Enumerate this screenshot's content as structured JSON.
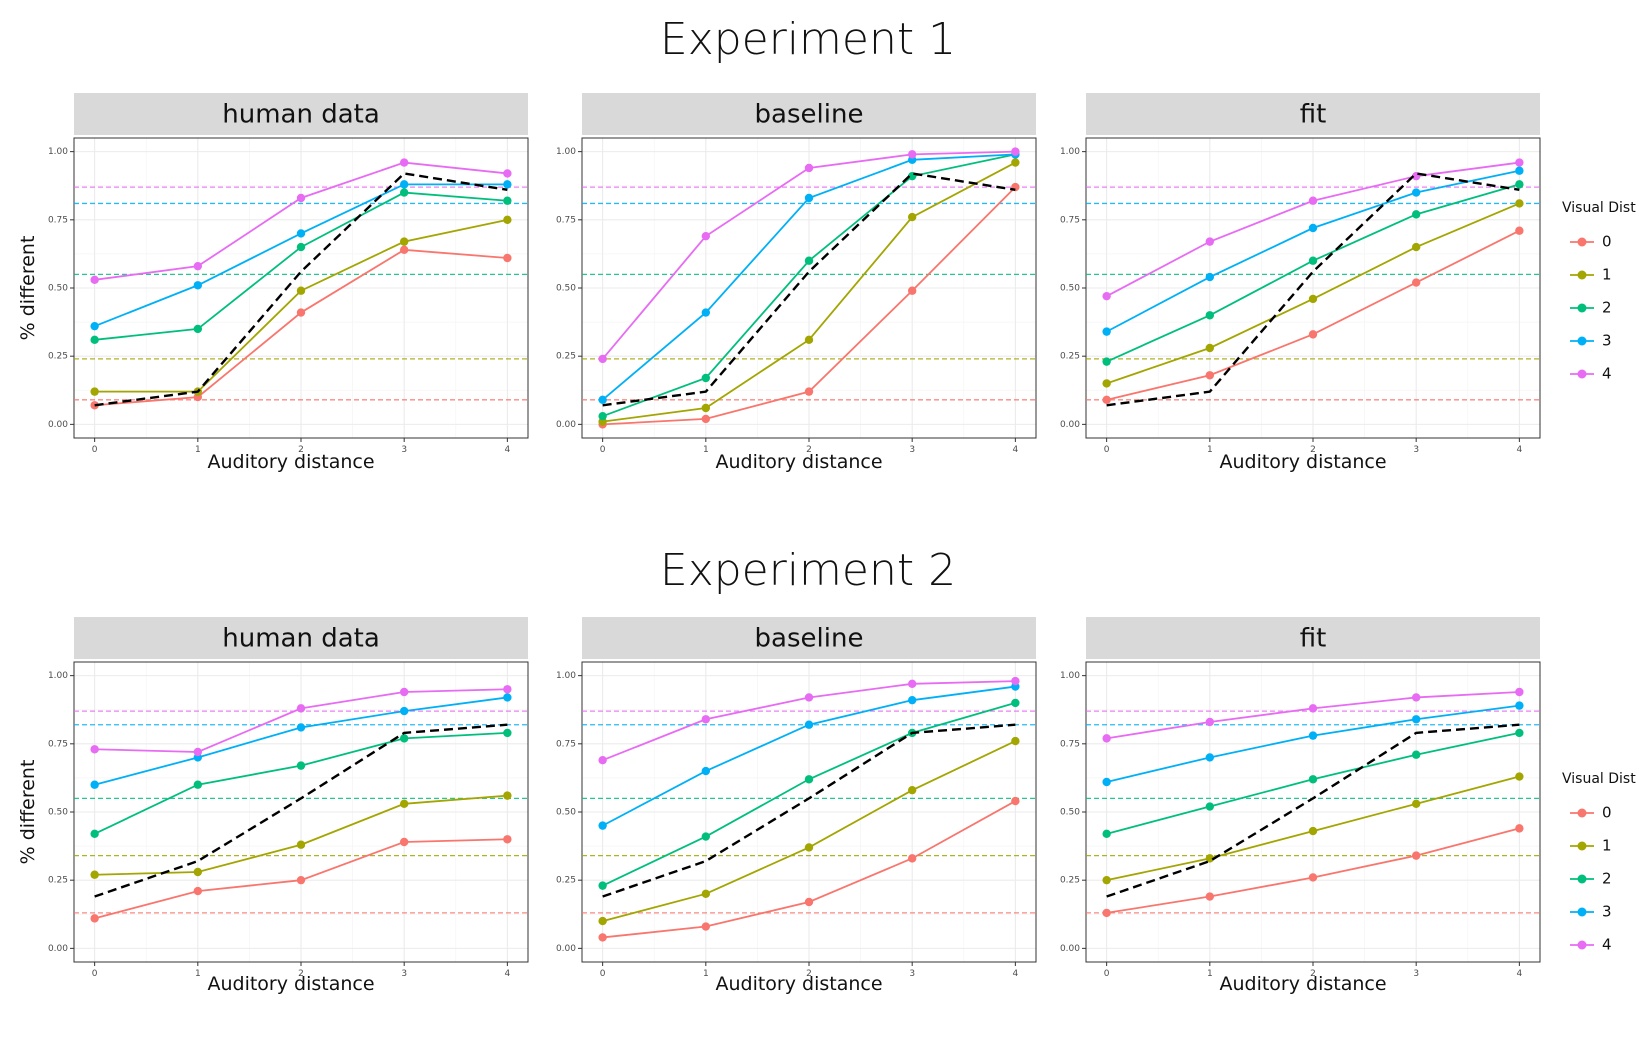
{
  "colors": {
    "visual_dist": [
      "#F8766D",
      "#A3A500",
      "#00BF7D",
      "#00B0F6",
      "#E76BF3"
    ],
    "mean_line": "#000000",
    "strip": "#d9d9d9"
  },
  "chart_data": [
    {
      "type": "line",
      "title": "Experiment 1",
      "panels": [
        {
          "name": "human data",
          "xlabel": "Auditory distance",
          "ylabel": "% different",
          "x": [
            0,
            1,
            2,
            3,
            4
          ],
          "series": [
            {
              "name": "0",
              "values": [
                0.07,
                0.1,
                0.41,
                0.64,
                0.61
              ]
            },
            {
              "name": "1",
              "values": [
                0.12,
                0.12,
                0.49,
                0.67,
                0.75
              ]
            },
            {
              "name": "2",
              "values": [
                0.31,
                0.35,
                0.65,
                0.85,
                0.82
              ]
            },
            {
              "name": "3",
              "values": [
                0.36,
                0.51,
                0.7,
                0.88,
                0.88
              ]
            },
            {
              "name": "4",
              "values": [
                0.53,
                0.58,
                0.83,
                0.96,
                0.92
              ]
            }
          ],
          "mean_line": [
            0.07,
            0.12,
            0.56,
            0.92,
            0.86
          ],
          "hlines": [
            0.09,
            0.24,
            0.55,
            0.81,
            0.87
          ]
        },
        {
          "name": "baseline",
          "xlabel": "Auditory distance",
          "ylabel": "",
          "x": [
            0,
            1,
            2,
            3,
            4
          ],
          "series": [
            {
              "name": "0",
              "values": [
                0.0,
                0.02,
                0.12,
                0.49,
                0.87
              ]
            },
            {
              "name": "1",
              "values": [
                0.01,
                0.06,
                0.31,
                0.76,
                0.96
              ]
            },
            {
              "name": "2",
              "values": [
                0.03,
                0.17,
                0.6,
                0.91,
                0.99
              ]
            },
            {
              "name": "3",
              "values": [
                0.09,
                0.41,
                0.83,
                0.97,
                0.99
              ]
            },
            {
              "name": "4",
              "values": [
                0.24,
                0.69,
                0.94,
                0.99,
                1.0
              ]
            }
          ],
          "mean_line": [
            0.07,
            0.12,
            0.56,
            0.92,
            0.86
          ],
          "hlines": [
            0.09,
            0.24,
            0.55,
            0.81,
            0.87
          ]
        },
        {
          "name": "fit",
          "xlabel": "Auditory distance",
          "ylabel": "",
          "x": [
            0,
            1,
            2,
            3,
            4
          ],
          "series": [
            {
              "name": "0",
              "values": [
                0.09,
                0.18,
                0.33,
                0.52,
                0.71
              ]
            },
            {
              "name": "1",
              "values": [
                0.15,
                0.28,
                0.46,
                0.65,
                0.81
              ]
            },
            {
              "name": "2",
              "values": [
                0.23,
                0.4,
                0.6,
                0.77,
                0.88
              ]
            },
            {
              "name": "3",
              "values": [
                0.34,
                0.54,
                0.72,
                0.85,
                0.93
              ]
            },
            {
              "name": "4",
              "values": [
                0.47,
                0.67,
                0.82,
                0.91,
                0.96
              ]
            }
          ],
          "mean_line": [
            0.07,
            0.12,
            0.56,
            0.92,
            0.86
          ],
          "hlines": [
            0.09,
            0.24,
            0.55,
            0.81,
            0.87
          ]
        }
      ],
      "ylim": [
        0,
        1
      ],
      "yticks": [
        "0.00",
        "0.25",
        "0.50",
        "0.75",
        "1.00"
      ],
      "xticks": [
        "0",
        "1",
        "2",
        "3",
        "4"
      ],
      "legend": {
        "title": "Visual Dist",
        "entries": [
          "0",
          "1",
          "2",
          "3",
          "4"
        ],
        "placement": "right"
      },
      "grid": true
    },
    {
      "type": "line",
      "title": "Experiment 2",
      "panels": [
        {
          "name": "human data",
          "xlabel": "Auditory distance",
          "ylabel": "% different",
          "x": [
            0,
            1,
            2,
            3,
            4
          ],
          "series": [
            {
              "name": "0",
              "values": [
                0.11,
                0.21,
                0.25,
                0.39,
                0.4
              ]
            },
            {
              "name": "1",
              "values": [
                0.27,
                0.28,
                0.38,
                0.53,
                0.56
              ]
            },
            {
              "name": "2",
              "values": [
                0.42,
                0.6,
                0.67,
                0.77,
                0.79
              ]
            },
            {
              "name": "3",
              "values": [
                0.6,
                0.7,
                0.81,
                0.87,
                0.92
              ]
            },
            {
              "name": "4",
              "values": [
                0.73,
                0.72,
                0.88,
                0.94,
                0.95
              ]
            }
          ],
          "mean_line": [
            0.19,
            0.32,
            0.55,
            0.79,
            0.82
          ],
          "hlines": [
            0.13,
            0.34,
            0.55,
            0.82,
            0.87
          ]
        },
        {
          "name": "baseline",
          "xlabel": "Auditory distance",
          "ylabel": "",
          "x": [
            0,
            1,
            2,
            3,
            4
          ],
          "series": [
            {
              "name": "0",
              "values": [
                0.04,
                0.08,
                0.17,
                0.33,
                0.54
              ]
            },
            {
              "name": "1",
              "values": [
                0.1,
                0.2,
                0.37,
                0.58,
                0.76
              ]
            },
            {
              "name": "2",
              "values": [
                0.23,
                0.41,
                0.62,
                0.79,
                0.9
              ]
            },
            {
              "name": "3",
              "values": [
                0.45,
                0.65,
                0.82,
                0.91,
                0.96
              ]
            },
            {
              "name": "4",
              "values": [
                0.69,
                0.84,
                0.92,
                0.97,
                0.98
              ]
            }
          ],
          "mean_line": [
            0.19,
            0.32,
            0.55,
            0.79,
            0.82
          ],
          "hlines": [
            0.13,
            0.34,
            0.55,
            0.82,
            0.87
          ]
        },
        {
          "name": "fit",
          "xlabel": "Auditory distance",
          "ylabel": "",
          "x": [
            0,
            1,
            2,
            3,
            4
          ],
          "series": [
            {
              "name": "0",
              "values": [
                0.13,
                0.19,
                0.26,
                0.34,
                0.44
              ]
            },
            {
              "name": "1",
              "values": [
                0.25,
                0.33,
                0.43,
                0.53,
                0.63
              ]
            },
            {
              "name": "2",
              "values": [
                0.42,
                0.52,
                0.62,
                0.71,
                0.79
              ]
            },
            {
              "name": "3",
              "values": [
                0.61,
                0.7,
                0.78,
                0.84,
                0.89
              ]
            },
            {
              "name": "4",
              "values": [
                0.77,
                0.83,
                0.88,
                0.92,
                0.94
              ]
            }
          ],
          "mean_line": [
            0.19,
            0.32,
            0.55,
            0.79,
            0.82
          ],
          "hlines": [
            0.13,
            0.34,
            0.55,
            0.82,
            0.87
          ]
        }
      ],
      "ylim": [
        0,
        1
      ],
      "yticks": [
        "0.00",
        "0.25",
        "0.50",
        "0.75",
        "1.00"
      ],
      "xticks": [
        "0",
        "1",
        "2",
        "3",
        "4"
      ],
      "legend": {
        "title": "Visual Dist",
        "entries": [
          "0",
          "1",
          "2",
          "3",
          "4"
        ],
        "placement": "right"
      },
      "grid": true
    }
  ]
}
